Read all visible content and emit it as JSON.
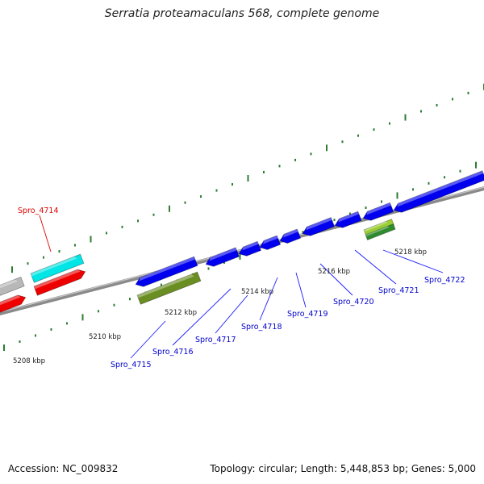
{
  "title": "Serratia proteamaculans 568, complete genome",
  "footer": {
    "accession": "Accession: NC_009832",
    "summary": "Topology: circular; Length: 5,448,853 bp; Genes: 5,000"
  },
  "colors": {
    "backbone": "#8a8a8a",
    "tick": "#2e7d32",
    "label_blue": "#0000cc",
    "label_red": "#dd0000",
    "leader_blue": "#1a1aff",
    "leader_red": "#e00000"
  },
  "kbp_labels": [
    "5208 kbp",
    "5210 kbp",
    "5212 kbp",
    "5214 kbp",
    "5216 kbp",
    "5218 kbp"
  ],
  "gene_labels": [
    {
      "text": "Spro_4714",
      "color": "red"
    },
    {
      "text": "Spro_4715",
      "color": "blue"
    },
    {
      "text": "Spro_4716",
      "color": "blue"
    },
    {
      "text": "Spro_4717",
      "color": "blue"
    },
    {
      "text": "Spro_4718",
      "color": "blue"
    },
    {
      "text": "Spro_4719",
      "color": "blue"
    },
    {
      "text": "Spro_4720",
      "color": "blue"
    },
    {
      "text": "Spro_4721",
      "color": "blue"
    },
    {
      "text": "Spro_4722",
      "color": "blue"
    }
  ],
  "features": [
    {
      "name": "gray-gene",
      "color": "#b8b8b8"
    },
    {
      "name": "red-gene",
      "color": "#ee0000"
    },
    {
      "name": "cyan-gene",
      "color": "#00e5e5"
    },
    {
      "name": "red-gene-2",
      "color": "#ee0000"
    },
    {
      "name": "blue-gene-4715",
      "color": "#0000ee"
    },
    {
      "name": "olive-gene",
      "color": "#6b8e23"
    },
    {
      "name": "blue-gene-4716",
      "color": "#0000ee"
    },
    {
      "name": "blue-gene-4717",
      "color": "#0000ee"
    },
    {
      "name": "blue-gene-4718",
      "color": "#0000ee"
    },
    {
      "name": "blue-gene-4719",
      "color": "#0000ee"
    },
    {
      "name": "blue-gene-4720",
      "color": "#0000ee"
    },
    {
      "name": "blue-gene-4721",
      "color": "#0000ee"
    },
    {
      "name": "blue-gene-4722",
      "color": "#0000ee"
    },
    {
      "name": "lightgreen-gene",
      "color": "#9acd32"
    },
    {
      "name": "green-gene",
      "color": "#2e8b2e"
    }
  ]
}
